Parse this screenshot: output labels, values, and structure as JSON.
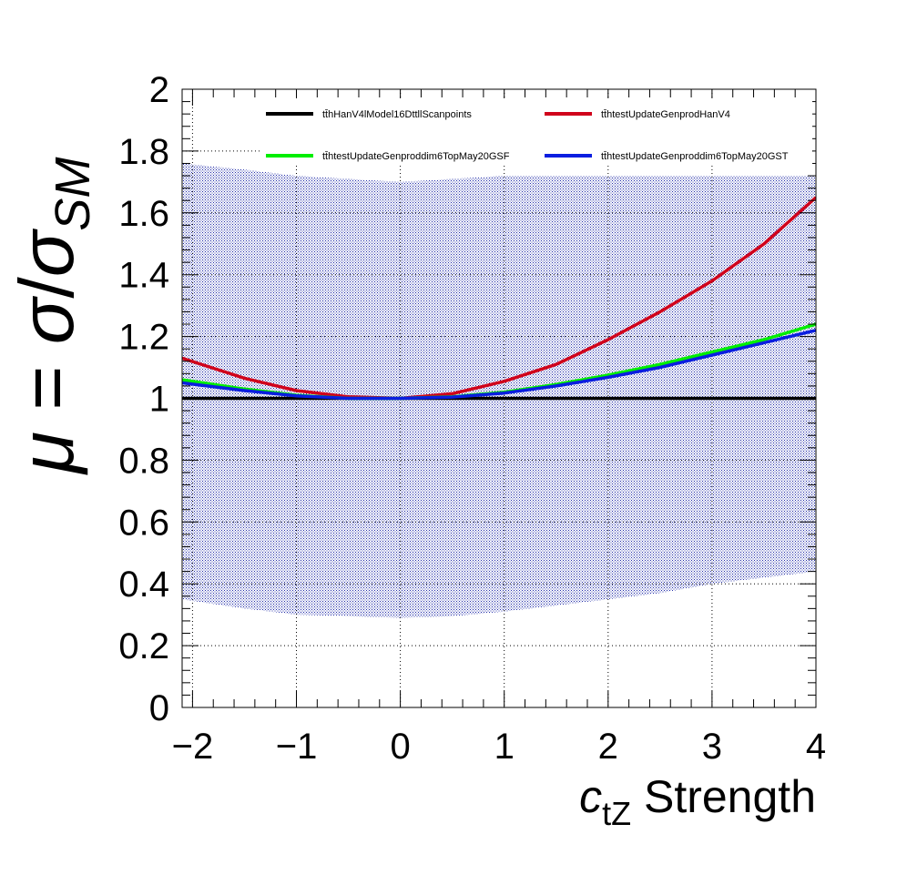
{
  "chart_data": {
    "type": "line",
    "xlabel": {
      "main": "c",
      "sub": "tZ",
      "rest": " Strength"
    },
    "ylabel": {
      "mu": "μ",
      "eq": " = ",
      "sigma1": "σ",
      "slash": "/",
      "sigma2": "σ",
      "sub": "SM"
    },
    "xlim": [
      -2.1,
      4
    ],
    "ylim": [
      0,
      2
    ],
    "xticks": [
      {
        "v": -2,
        "label": "−2"
      },
      {
        "v": -1,
        "label": "−1"
      },
      {
        "v": 0,
        "label": "0"
      },
      {
        "v": 1,
        "label": "1"
      },
      {
        "v": 2,
        "label": "2"
      },
      {
        "v": 3,
        "label": "3"
      },
      {
        "v": 4,
        "label": "4"
      }
    ],
    "yticks": [
      {
        "v": 0,
        "label": "0"
      },
      {
        "v": 0.2,
        "label": "0.2"
      },
      {
        "v": 0.4,
        "label": "0.4"
      },
      {
        "v": 0.6,
        "label": "0.6"
      },
      {
        "v": 0.8,
        "label": "0.8"
      },
      {
        "v": 1,
        "label": "1"
      },
      {
        "v": 1.2,
        "label": "1.2"
      },
      {
        "v": 1.4,
        "label": "1.4"
      },
      {
        "v": 1.6,
        "label": "1.6"
      },
      {
        "v": 1.8,
        "label": "1.8"
      },
      {
        "v": 2,
        "label": "2"
      }
    ],
    "grid": true,
    "legend_position": "top",
    "band": {
      "color": "#1f2aa8",
      "x": [
        -2.1,
        -1.5,
        -1,
        -0.5,
        0,
        0.5,
        1,
        1.5,
        2,
        2.5,
        3,
        3.5,
        4
      ],
      "upper": [
        1.76,
        1.74,
        1.72,
        1.71,
        1.7,
        1.71,
        1.72,
        1.72,
        1.72,
        1.72,
        1.72,
        1.72,
        1.72
      ],
      "lower": [
        0.35,
        0.32,
        0.3,
        0.295,
        0.29,
        0.295,
        0.31,
        0.33,
        0.35,
        0.37,
        0.4,
        0.42,
        0.44
      ]
    },
    "series": [
      {
        "name": "tt̄hHanV4lModel16DttllScanpoints",
        "color": "#000000",
        "x": [
          -2.1,
          -1.5,
          -1,
          -0.5,
          0,
          0.5,
          1,
          1.5,
          2,
          2.5,
          3,
          3.5,
          4
        ],
        "y": [
          1.0,
          1.0,
          1.0,
          1.0,
          1.0,
          1.0,
          1.0,
          1.0,
          1.0,
          1.0,
          1.0,
          1.0,
          1.0
        ]
      },
      {
        "name": "tt̄htestUpdateGenprodHanV4",
        "color": "#d0021b",
        "x": [
          -2.1,
          -1.5,
          -1,
          -0.5,
          0,
          0.5,
          1,
          1.5,
          2,
          2.5,
          3,
          3.5,
          4
        ],
        "y": [
          1.13,
          1.065,
          1.025,
          1.005,
          1.0,
          1.015,
          1.055,
          1.11,
          1.19,
          1.28,
          1.38,
          1.5,
          1.65
        ]
      },
      {
        "name": "tt̄htestUpdateGenproddim6TopMay20GSF",
        "color": "#00ee00",
        "x": [
          -2.1,
          -1.5,
          -1,
          -0.5,
          0,
          0.5,
          1,
          1.5,
          2,
          2.5,
          3,
          3.5,
          4
        ],
        "y": [
          1.06,
          1.03,
          1.01,
          1.0,
          1.0,
          1.005,
          1.02,
          1.045,
          1.075,
          1.11,
          1.15,
          1.19,
          1.24
        ]
      },
      {
        "name": "tt̄htestUpdateGenproddim6TopMay20GST",
        "color": "#0a1ee0",
        "x": [
          -2.1,
          -1.5,
          -1,
          -0.5,
          0,
          0.5,
          1,
          1.5,
          2,
          2.5,
          3,
          3.5,
          4
        ],
        "y": [
          1.05,
          1.025,
          1.008,
          1.0,
          1.0,
          1.004,
          1.017,
          1.04,
          1.068,
          1.1,
          1.14,
          1.18,
          1.22
        ]
      }
    ]
  }
}
